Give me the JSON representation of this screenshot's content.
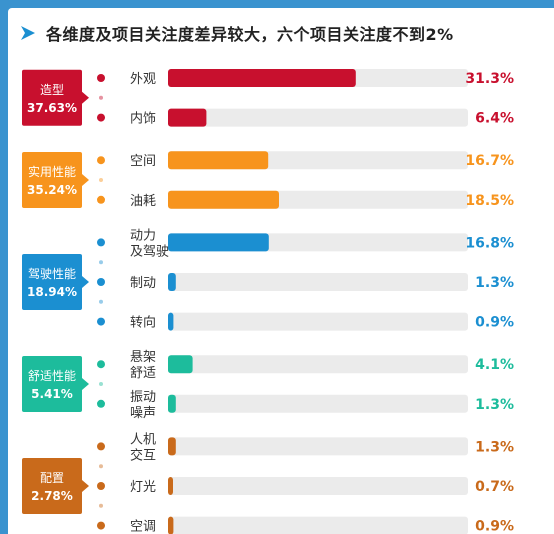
{
  "title": "各维度及项目关注度差异较大，六个项目关注度不到2%",
  "chart_data": {
    "type": "bar",
    "orientation": "horizontal",
    "xlim": [
      0,
      50
    ],
    "grid": false,
    "groups": [
      {
        "name": "造型",
        "value_label": "37.63%",
        "color": "#c8102e",
        "items": [
          {
            "label": [
              "外观"
            ],
            "value": 31.3,
            "value_label": "31.3%"
          },
          {
            "label": [
              "内饰"
            ],
            "value": 6.4,
            "value_label": "6.4%"
          }
        ]
      },
      {
        "name": "实用性能",
        "value_label": "35.24%",
        "color": "#f7941d",
        "items": [
          {
            "label": [
              "空间"
            ],
            "value": 16.7,
            "value_label": "16.7%"
          },
          {
            "label": [
              "油耗"
            ],
            "value": 18.5,
            "value_label": "18.5%"
          }
        ]
      },
      {
        "name": "驾驶性能",
        "value_label": "18.94%",
        "color": "#1b8fd1",
        "items": [
          {
            "label": [
              "动力",
              "及驾驶"
            ],
            "value": 16.8,
            "value_label": "16.8%"
          },
          {
            "label": [
              "制动"
            ],
            "value": 1.3,
            "value_label": "1.3%"
          },
          {
            "label": [
              "转向"
            ],
            "value": 0.9,
            "value_label": "0.9%"
          }
        ]
      },
      {
        "name": "舒适性能",
        "value_label": "5.41%",
        "color": "#1dbc9c",
        "items": [
          {
            "label": [
              "悬架",
              "舒适"
            ],
            "value": 4.1,
            "value_label": "4.1%"
          },
          {
            "label": [
              "振动",
              "噪声"
            ],
            "value": 1.3,
            "value_label": "1.3%"
          }
        ]
      },
      {
        "name": "配置",
        "value_label": "2.78%",
        "color": "#c96a1b",
        "items": [
          {
            "label": [
              "人机",
              "交互"
            ],
            "value": 1.3,
            "value_label": "1.3%"
          },
          {
            "label": [
              "灯光"
            ],
            "value": 0.7,
            "value_label": "0.7%"
          },
          {
            "label": [
              "空调"
            ],
            "value": 0.9,
            "value_label": "0.9%"
          }
        ]
      }
    ]
  }
}
